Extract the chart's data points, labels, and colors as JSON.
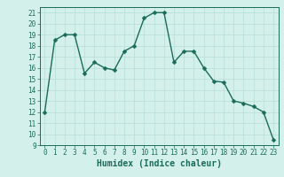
{
  "x": [
    0,
    1,
    2,
    3,
    4,
    5,
    6,
    7,
    8,
    9,
    10,
    11,
    12,
    13,
    14,
    15,
    16,
    17,
    18,
    19,
    20,
    21,
    22,
    23
  ],
  "y": [
    12,
    18.5,
    19,
    19,
    15.5,
    16.5,
    16,
    15.8,
    17.5,
    18,
    20.5,
    21,
    21,
    16.5,
    17.5,
    17.5,
    16,
    14.8,
    14.7,
    13,
    12.8,
    12.5,
    12,
    9.5
  ],
  "line_color": "#1a6b5a",
  "marker_color": "#1a6b5a",
  "background_color": "#d4f0eb",
  "grid_color": "#b8ddd6",
  "xlabel": "Humidex (Indice chaleur)",
  "xlim": [
    -0.5,
    23.5
  ],
  "ylim": [
    9,
    21.5
  ],
  "yticks": [
    9,
    10,
    11,
    12,
    13,
    14,
    15,
    16,
    17,
    18,
    19,
    20,
    21
  ],
  "xticks": [
    0,
    1,
    2,
    3,
    4,
    5,
    6,
    7,
    8,
    9,
    10,
    11,
    12,
    13,
    14,
    15,
    16,
    17,
    18,
    19,
    20,
    21,
    22,
    23
  ],
  "marker_size": 2.5,
  "line_width": 1.0,
  "font_color": "#1a6b5a",
  "tick_label_fontsize": 5.5,
  "xlabel_fontsize": 7.0
}
